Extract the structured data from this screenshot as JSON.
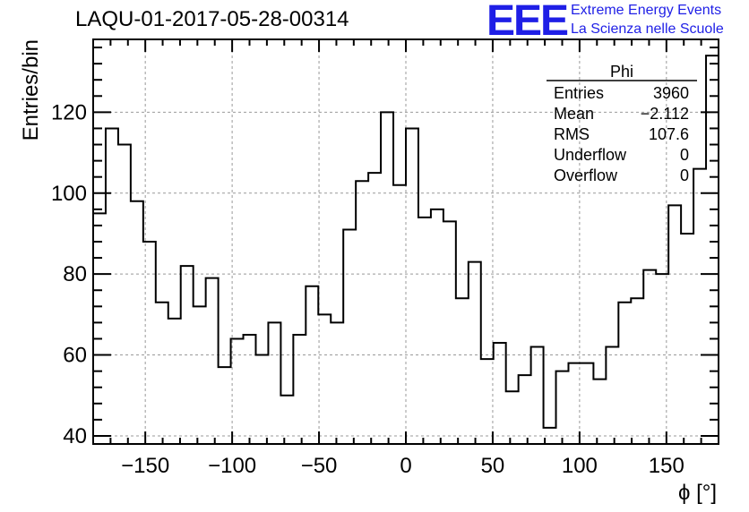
{
  "header": {
    "title": "LAQU-01-2017-05-28-00314",
    "logo_text": "EEE",
    "brand_line1": "Extreme Energy Events",
    "brand_line2": "La Scienza nelle Scuole"
  },
  "stats_box": {
    "name": "Phi",
    "rows": [
      {
        "label": "Entries",
        "value": "3960"
      },
      {
        "label": "Mean",
        "value": "−2.112"
      },
      {
        "label": "RMS",
        "value": "107.6"
      },
      {
        "label": "Underflow",
        "value": "0"
      },
      {
        "label": "Overflow",
        "value": "0"
      }
    ]
  },
  "colors": {
    "line": "#000000",
    "grid": "#999999",
    "logo": "#1f1fe6"
  },
  "chart_data": {
    "type": "bar",
    "style": "step-histogram",
    "xlabel": "ϕ [°]",
    "ylabel": "Entries/bin",
    "xlim": [
      -180,
      180
    ],
    "ylim": [
      38,
      138
    ],
    "grid": true,
    "bin_width": 7.2,
    "x_ticks": [
      -150,
      -100,
      -50,
      0,
      50,
      100,
      150
    ],
    "x_tick_labels": [
      "−150",
      "−100",
      "−50",
      "0",
      "50",
      "100",
      "150"
    ],
    "y_ticks": [
      40,
      60,
      80,
      100,
      120
    ],
    "y_tick_labels": [
      "40",
      "60",
      "80",
      "100",
      "120"
    ],
    "values": [
      95,
      116,
      112,
      98,
      88,
      73,
      69,
      82,
      72,
      79,
      57,
      64,
      65,
      60,
      68,
      50,
      65,
      77,
      70,
      68,
      91,
      103,
      105,
      120,
      102,
      116,
      94,
      96,
      93,
      74,
      83,
      59,
      63,
      51,
      55,
      62,
      42,
      56,
      58,
      58,
      54,
      62,
      73,
      74,
      81,
      80,
      97,
      90,
      106,
      134
    ]
  }
}
